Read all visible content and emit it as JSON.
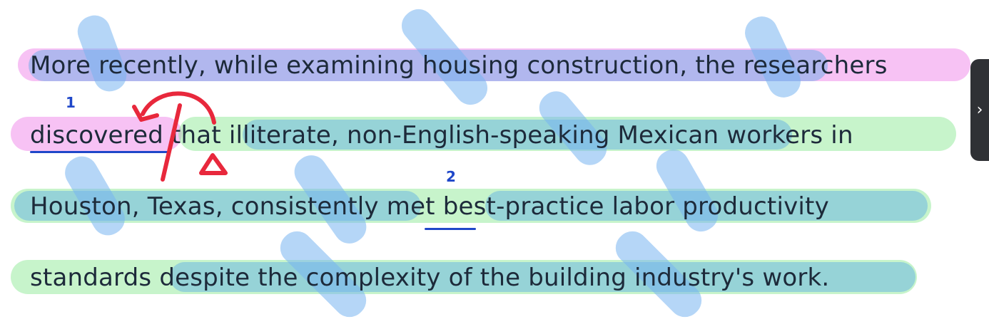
{
  "passage": {
    "line1": "More recently, while examining housing construction, the researchers",
    "line2": "discovered that illiterate, non-English-speaking Mexican workers in",
    "line3": "Houston, Texas, consistently met best-practice labor productivity",
    "line4": "standards despite the complexity of the building industry's work."
  },
  "annotations": {
    "num1": "1",
    "num2": "2"
  },
  "next_button": {
    "label": "›"
  },
  "colors": {
    "subject_highlight": "#ee78e6",
    "verb_highlight": "#82e68c",
    "modifier_highlight": "#5aaae6",
    "pen_red": "#e8283c",
    "pen_blue": "#1f47c9"
  }
}
